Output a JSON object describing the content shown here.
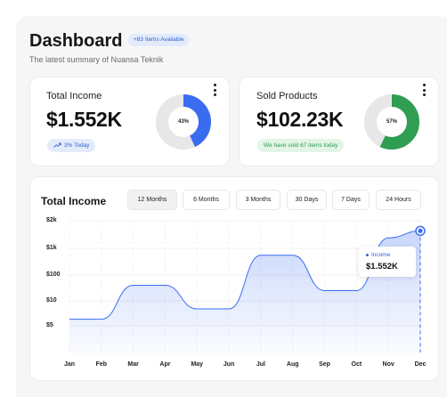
{
  "header": {
    "title": "Dashboard",
    "badge": "+83 Items Available",
    "subtitle": "The latest summary of Nuansa Teknik"
  },
  "income_card": {
    "label": "Total Income",
    "value": "$1.552K",
    "trend": "3% Today",
    "donut_label": "43%",
    "donut_percent": 43,
    "color": "#3a6cf0"
  },
  "products_card": {
    "label": "Sold Products",
    "value": "$102.23K",
    "note": "We have sold 67 items today",
    "donut_label": "57%",
    "donut_percent": 57,
    "color": "#2f9e51"
  },
  "chart_section": {
    "title": "Total Income",
    "ranges": [
      "12 Months",
      "6 Months",
      "3 Months",
      "30 Days",
      "7 Days",
      "24 Hours"
    ],
    "active_range": "12 Months"
  },
  "tooltip": {
    "series": "Income",
    "value": "$1.552K"
  },
  "chart_data": {
    "type": "area",
    "x": [
      "Jan",
      "Feb",
      "Mar",
      "Apr",
      "May",
      "Jun",
      "Jul",
      "Aug",
      "Sep",
      "Oct",
      "Nov",
      "Dec"
    ],
    "y_tick_labels": [
      "$2k",
      "$1k",
      "$100",
      "$10",
      "$5"
    ],
    "series": [
      {
        "name": "Income",
        "values": [
          6,
          6,
          40,
          40,
          8,
          8,
          550,
          550,
          25,
          25,
          1300,
          1552
        ]
      }
    ],
    "y_scale": "log",
    "grid": true,
    "highlighted_point": "Dec",
    "color": "#3a6cf0"
  }
}
